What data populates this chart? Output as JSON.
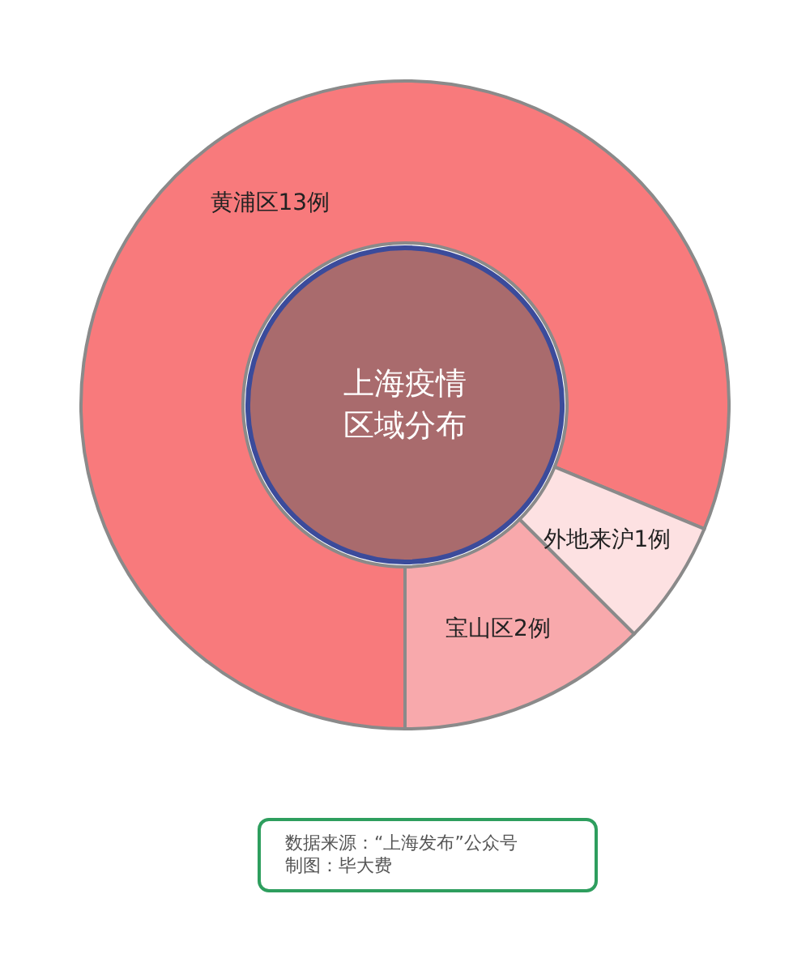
{
  "chart_data": {
    "type": "donut",
    "title": "上海疫情区域分布",
    "categories": [
      "黄浦区13例",
      "外地来沪1例",
      "宝山区2例"
    ],
    "values": [
      13,
      1,
      2
    ],
    "colors": [
      "#f87a7c",
      "#fde1e2",
      "#f8a9ac"
    ],
    "annotations": [
      "数据来源：“上海发布”公众号",
      "制图：毕大费"
    ]
  }
}
